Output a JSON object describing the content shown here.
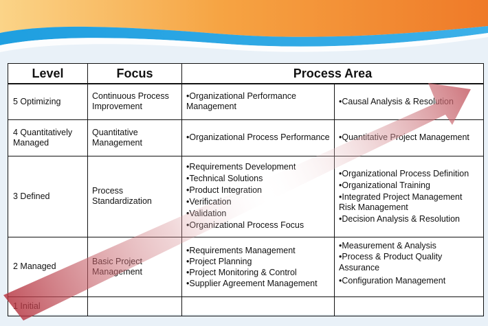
{
  "colors": {
    "banner_orange": "#f08a2a",
    "banner_blue": "#2aa3df",
    "arrow": "#c2555e"
  },
  "headers": {
    "level": "Level",
    "focus": "Focus",
    "process_area": "Process Area"
  },
  "rows": [
    {
      "level": "5 Optimizing",
      "focus": "Continuous Process Improvement",
      "left": [
        "•Organizational Performance Management"
      ],
      "right": [
        "•Causal Analysis & Resolution"
      ]
    },
    {
      "level": "4 Quantitatively Managed",
      "focus": "Quantitative Management",
      "left": [
        "•Organizational Process Performance"
      ],
      "right": [
        "•Quantitative Project Management"
      ]
    },
    {
      "level": "3 Defined",
      "focus": "Process Standardization",
      "left": [
        "•Requirements Development",
        "•Technical Solutions",
        "•Product Integration",
        "•Verification",
        "•Validation",
        "•Organizational Process Focus"
      ],
      "right": [
        "•Organizational Process Definition",
        "•Organizational Training",
        "•Integrated Project Management Risk Management",
        "•Decision Analysis & Resolution"
      ]
    },
    {
      "level": "2 Managed",
      "focus": "Basic Project Management",
      "left": [
        "•Requirements Management",
        "•Project Planning",
        "•Project Monitoring & Control",
        "•Supplier Agreement Management"
      ],
      "right": [
        "•Measurement & Analysis",
        "•Process & Product Quality Assurance",
        "•Configuration Management"
      ]
    },
    {
      "level": "1 Initial",
      "focus": "",
      "left": [],
      "right": []
    }
  ]
}
